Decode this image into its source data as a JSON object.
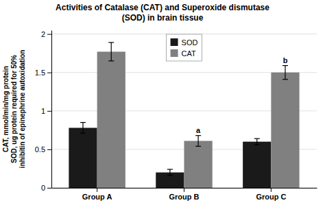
{
  "chart_data": {
    "type": "bar",
    "title": "Activities of Catalase (CAT) and Superoxide dismutase\n(SOD) in brain tissue",
    "categories": [
      "Group A",
      "Group B",
      "Group C"
    ],
    "series": [
      {
        "name": "SOD",
        "color": "#1a1a1a",
        "values": [
          0.78,
          0.2,
          0.6
        ],
        "errors": [
          0.07,
          0.04,
          0.04
        ]
      },
      {
        "name": "CAT",
        "color": "#808080",
        "values": [
          1.77,
          0.61,
          1.5
        ],
        "errors": [
          0.12,
          0.07,
          0.09
        ]
      }
    ],
    "ylabel": "CAT, mmol/min/mg protein\nSOD, ug protein required for 50%\ninhibitin of epinephrine autoxidation",
    "ylim": [
      0,
      2.05
    ],
    "yticks": [
      0,
      0.5,
      1,
      1.5,
      2
    ],
    "annotations": [
      {
        "text": "a",
        "series": "CAT",
        "category": "Group B"
      },
      {
        "text": "b",
        "series": "CAT",
        "category": "Group C"
      }
    ],
    "grid": true,
    "legend": "upper center"
  }
}
